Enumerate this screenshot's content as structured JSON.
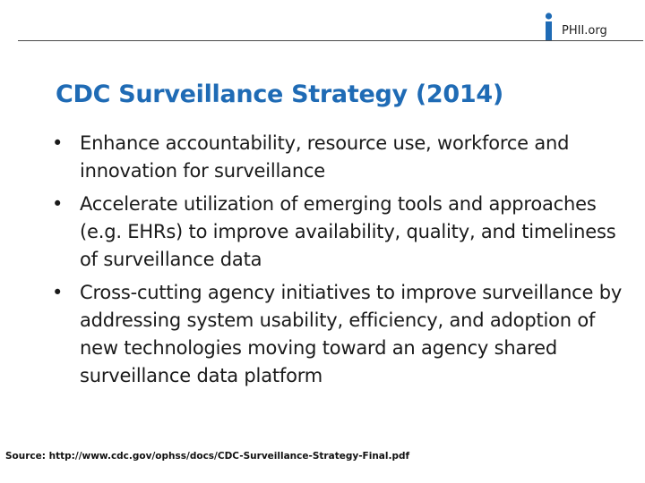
{
  "header": {
    "logo_letter": "i",
    "logo_text": "PHII.org",
    "accent_color": "#1f6bb5"
  },
  "slide": {
    "title": "CDC Surveillance Strategy (2014)",
    "bullets": [
      "Enhance accountability, resource use, workforce and innovation for surveillance",
      "Accelerate utilization of emerging tools and approaches (e.g. EHRs) to improve availability, quality, and timeliness of surveillance data",
      "Cross-cutting agency initiatives to improve surveillance by addressing system usability, efficiency, and adoption of new technologies moving toward an agency shared surveillance data platform"
    ],
    "source": "Source: http://www.cdc.gov/ophss/docs/CDC-Surveillance-Strategy-Final.pdf"
  }
}
